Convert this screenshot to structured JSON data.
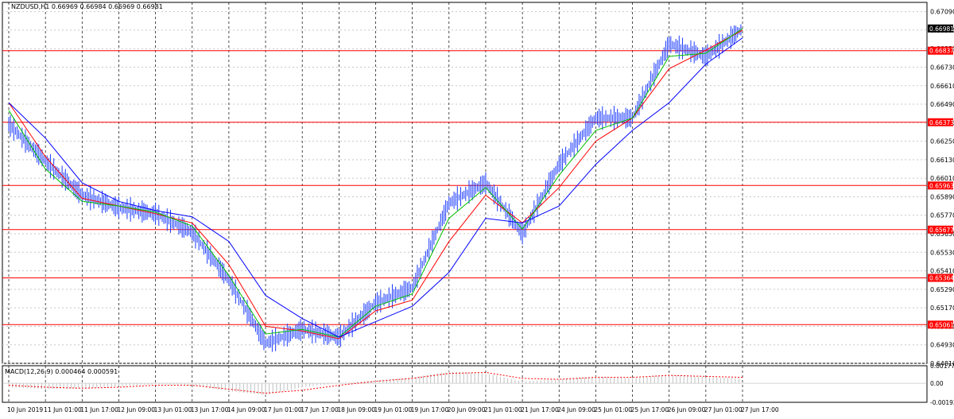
{
  "window": {
    "header_text": "NZDUSD,H1  0.66969 0.66984 0.66969 0.66981",
    "symbol": "NZDUSD",
    "timeframe": "H1"
  },
  "price_axis": {
    "ticks": [
      "0.67090",
      "0.66970",
      "0.66850",
      "0.66730",
      "0.66610",
      "0.66490",
      "0.66370",
      "0.66250",
      "0.66130",
      "0.66010",
      "0.65890",
      "0.65770",
      "0.65650",
      "0.65530",
      "0.65410",
      "0.65290",
      "0.65170",
      "0.65050",
      "0.64930",
      "0.64810"
    ],
    "current_price": "0.66981",
    "current_price_color": "#000000"
  },
  "horizontal_levels": [
    {
      "value": "0.66837",
      "color": "#ff0000"
    },
    {
      "value": "0.66373",
      "color": "#ff0000"
    },
    {
      "value": "0.65963",
      "color": "#ff0000"
    },
    {
      "value": "0.65677",
      "color": "#ff0000"
    },
    {
      "value": "0.65364",
      "color": "#ff0000"
    },
    {
      "value": "0.65061",
      "color": "#ff0000"
    }
  ],
  "time_axis": [
    "10 Jun 2019",
    "11 Jun 01:00",
    "11 Jun 17:00",
    "12 Jun 09:00",
    "13 Jun 01:00",
    "13 Jun 17:00",
    "14 Jun 09:00",
    "17 Jun 01:00",
    "17 Jun 17:00",
    "18 Jun 09:00",
    "19 Jun 01:00",
    "19 Jun 17:00",
    "20 Jun 09:00",
    "21 Jun 01:00",
    "21 Jun 17:00",
    "24 Jun 09:00",
    "25 Jun 01:00",
    "25 Jun 17:00",
    "26 Jun 09:00",
    "27 Jun 01:00",
    "27 Jun 17:00"
  ],
  "macd": {
    "header_text": "MACD(12,26,9) 0.000464 0.000591",
    "ticks": [
      "0.001779",
      "0.00",
      "-0.001929"
    ]
  },
  "chart_data": {
    "type": "line",
    "title": "NZDUSD,H1",
    "xlabel": "",
    "ylabel": "",
    "ylim": [
      0.6481,
      0.6715
    ],
    "x": [
      "10 Jun 2019",
      "11 Jun 01:00",
      "11 Jun 17:00",
      "12 Jun 09:00",
      "13 Jun 01:00",
      "13 Jun 17:00",
      "14 Jun 09:00",
      "17 Jun 01:00",
      "17 Jun 17:00",
      "18 Jun 09:00",
      "19 Jun 01:00",
      "19 Jun 17:00",
      "20 Jun 09:00",
      "21 Jun 01:00",
      "21 Jun 17:00",
      "24 Jun 09:00",
      "25 Jun 01:00",
      "25 Jun 17:00",
      "26 Jun 09:00",
      "27 Jun 01:00",
      "27 Jun 17:00"
    ],
    "series": [
      {
        "name": "",
        "color": "#1a3aff",
        "values": [
          0.6636,
          0.6612,
          0.659,
          0.6582,
          0.6578,
          0.6566,
          0.6535,
          0.6494,
          0.6503,
          0.6498,
          0.652,
          0.653,
          0.6585,
          0.6598,
          0.6565,
          0.661,
          0.664,
          0.664,
          0.6688,
          0.668,
          0.6698
        ]
      },
      {
        "name": "",
        "color": "#ff0000",
        "values": [
          0.665,
          0.6615,
          0.6588,
          0.6583,
          0.6578,
          0.6572,
          0.6545,
          0.6505,
          0.6502,
          0.6497,
          0.6515,
          0.6522,
          0.656,
          0.659,
          0.6572,
          0.6595,
          0.6625,
          0.664,
          0.6672,
          0.6684,
          0.6697
        ]
      },
      {
        "name": "",
        "color": "#00c000",
        "values": [
          0.6645,
          0.6607,
          0.6586,
          0.6583,
          0.6579,
          0.657,
          0.6538,
          0.65,
          0.6503,
          0.6498,
          0.6518,
          0.6526,
          0.6575,
          0.6595,
          0.6568,
          0.6603,
          0.6632,
          0.664,
          0.668,
          0.6682,
          0.6698
        ]
      },
      {
        "name": "",
        "color": "#0000ff",
        "values": [
          0.665,
          0.6627,
          0.6598,
          0.6586,
          0.658,
          0.6576,
          0.656,
          0.6525,
          0.651,
          0.6498,
          0.6508,
          0.6518,
          0.654,
          0.6575,
          0.6572,
          0.6583,
          0.661,
          0.6632,
          0.665,
          0.6675,
          0.6692
        ]
      }
    ],
    "macd_histogram": [
      -0.0004,
      -0.0006,
      -0.0005,
      -0.0003,
      -0.0001,
      -0.0002,
      -0.0008,
      -0.0012,
      -0.0004,
      0.0,
      0.0003,
      0.0006,
      0.0012,
      0.001,
      0.0002,
      0.0004,
      0.0007,
      0.0005,
      0.0009,
      0.0006,
      0.0005
    ],
    "macd_signal": [
      -0.0002,
      -0.0004,
      -0.0005,
      -0.0004,
      -0.0002,
      -0.0002,
      -0.0006,
      -0.001,
      -0.0007,
      -0.0002,
      0.0002,
      0.0005,
      0.001,
      0.0011,
      0.0005,
      0.0004,
      0.0006,
      0.0006,
      0.0008,
      0.0007,
      0.0006
    ],
    "grid": true,
    "legend": "none"
  }
}
